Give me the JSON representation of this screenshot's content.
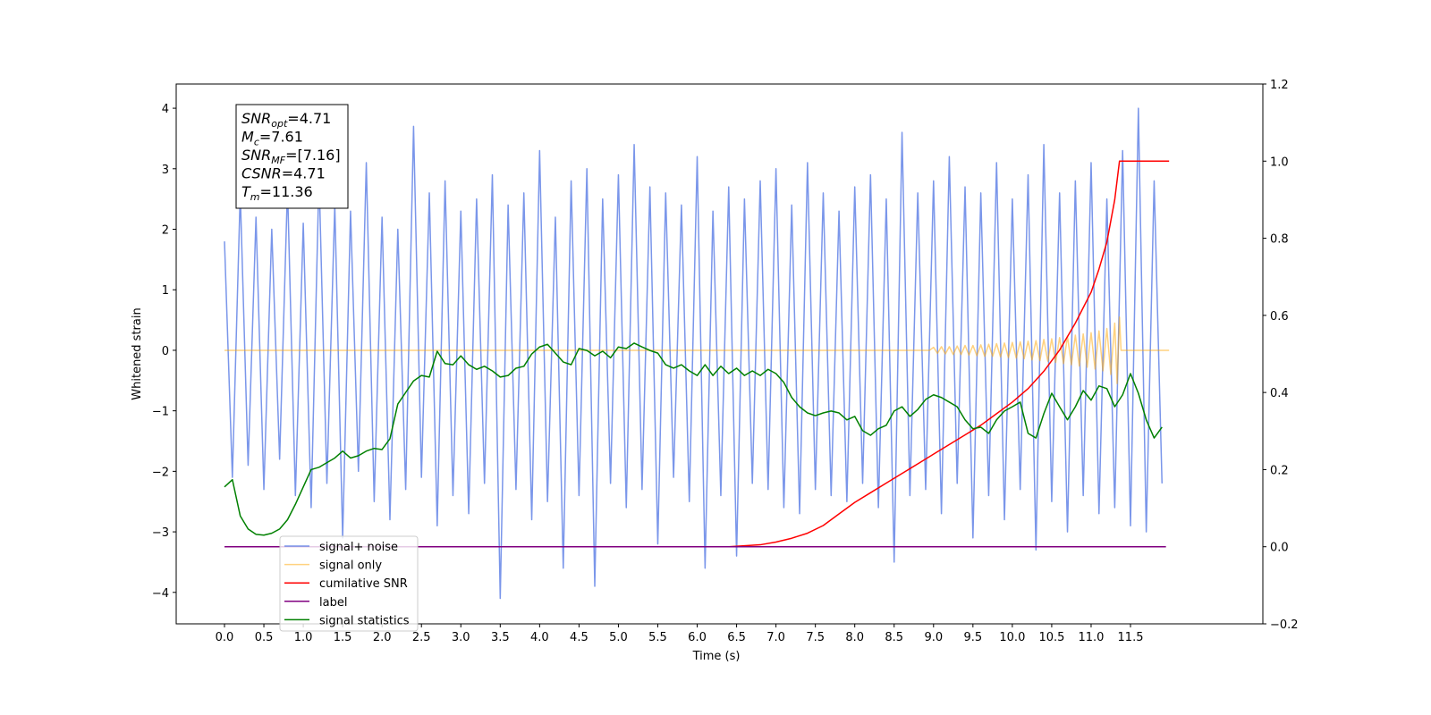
{
  "chart_data": {
    "type": "line",
    "x_label": "Time (s)",
    "y_label": "Whitened strain",
    "xlim": [
      -0.613,
      13.18
    ],
    "ylim": [
      -4.52,
      4.4
    ],
    "y2lim": [
      -0.2,
      1.2
    ],
    "xticks": [
      {
        "value": 0,
        "label": "0.0"
      },
      0.5,
      {
        "value": 1,
        "label": "1.0"
      },
      1.5,
      {
        "value": 2,
        "label": "2.0"
      },
      2.5,
      {
        "value": 3,
        "label": "3.0"
      },
      3.5,
      {
        "value": 4,
        "label": "4.0"
      },
      4.5,
      {
        "value": 5,
        "label": "5.0"
      },
      5.5,
      {
        "value": 6,
        "label": "6.0"
      },
      6.5,
      {
        "value": 7,
        "label": "7.0"
      },
      7.5,
      {
        "value": 8,
        "label": "8.0"
      },
      8.5,
      {
        "value": 9,
        "label": "9.0"
      },
      9.5,
      {
        "value": 10,
        "label": "10.0"
      },
      10.5,
      {
        "value": 11,
        "label": "11.0"
      },
      11.5
    ],
    "yticks": [
      {
        "value": -4,
        "label": "−4"
      },
      {
        "value": -3,
        "label": "−3"
      },
      {
        "value": -2,
        "label": "−2"
      },
      {
        "value": -1,
        "label": "−1"
      },
      0,
      1,
      2,
      3,
      4
    ],
    "y2ticks": [
      {
        "value": -0.2,
        "label": "−0.2"
      },
      {
        "value": 0,
        "label": "0.0"
      },
      0.2,
      0.4,
      0.6,
      0.8,
      {
        "value": 1,
        "label": "1.0"
      },
      1.2
    ],
    "x": [
      0,
      0.1,
      0.2,
      0.3,
      0.4,
      0.5,
      0.6,
      0.7,
      0.8,
      0.9,
      1,
      1.1,
      1.2,
      1.3,
      1.4,
      1.5,
      1.6,
      1.7,
      1.8,
      1.9,
      2,
      2.1,
      2.2,
      2.3,
      2.4,
      2.5,
      2.6,
      2.7,
      2.8,
      2.9,
      3,
      3.1,
      3.2,
      3.3,
      3.4,
      3.5,
      3.6,
      3.7,
      3.8,
      3.9,
      4,
      4.1,
      4.2,
      4.3,
      4.4,
      4.5,
      4.6,
      4.7,
      4.8,
      4.9,
      5,
      5.1,
      5.2,
      5.3,
      5.4,
      5.5,
      5.6,
      5.7,
      5.8,
      5.9,
      6,
      6.1,
      6.2,
      6.3,
      6.4,
      6.5,
      6.6,
      6.7,
      6.8,
      6.9,
      7,
      7.1,
      7.2,
      7.3,
      7.4,
      7.5,
      7.6,
      7.7,
      7.8,
      7.9,
      8,
      8.1,
      8.2,
      8.3,
      8.4,
      8.5,
      8.6,
      8.7,
      8.8,
      8.9,
      9,
      9.1,
      9.2,
      9.3,
      9.4,
      9.5,
      9.6,
      9.7,
      9.8,
      9.9,
      10,
      10.1,
      10.2,
      10.3,
      10.4,
      10.5,
      10.6,
      10.7,
      10.8,
      10.9,
      11,
      11.1,
      11.2,
      11.3,
      11.4,
      11.5,
      11.6,
      11.7,
      11.8,
      11.9
    ],
    "series": [
      {
        "name": "signal+ noise",
        "color": "#4169e1",
        "opacity": 0.7,
        "values": [
          1.8,
          -2.1,
          2.6,
          -1.9,
          2.2,
          -2.3,
          2.0,
          -1.8,
          2.7,
          -2.4,
          2.1,
          -2.6,
          2.9,
          -2.2,
          2.4,
          -3.1,
          2.3,
          -2.0,
          3.1,
          -2.5,
          2.2,
          -2.8,
          2.0,
          -2.3,
          3.7,
          -2.1,
          2.6,
          -2.9,
          2.8,
          -2.4,
          2.3,
          -2.7,
          2.5,
          -2.2,
          2.9,
          -4.1,
          2.4,
          -2.3,
          2.6,
          -2.8,
          3.3,
          -2.5,
          2.2,
          -3.6,
          2.8,
          -2.4,
          3.0,
          -3.9,
          2.5,
          -2.2,
          2.9,
          -2.6,
          3.4,
          -2.3,
          2.7,
          -3.2,
          2.6,
          -2.1,
          2.4,
          -2.5,
          3.2,
          -3.6,
          2.3,
          -2.4,
          2.7,
          -3.4,
          2.5,
          -2.2,
          2.8,
          -2.3,
          3.0,
          -2.6,
          2.4,
          -2.7,
          3.1,
          -2.3,
          2.6,
          -2.4,
          2.3,
          -2.5,
          2.7,
          -2.2,
          2.9,
          -2.6,
          2.5,
          -3.5,
          3.6,
          -2.4,
          2.6,
          -2.3,
          2.8,
          -2.7,
          3.2,
          -2.2,
          2.7,
          -3.1,
          2.6,
          -2.4,
          3.1,
          -2.8,
          2.5,
          -2.3,
          2.9,
          -3.3,
          3.4,
          -2.5,
          2.6,
          -3.0,
          2.8,
          -2.4,
          3.1,
          -2.7,
          2.5,
          -2.6,
          3.3,
          -2.9,
          4.0,
          -3.0,
          2.8,
          -2.2
        ]
      },
      {
        "name": "signal only",
        "color": "#ffa500",
        "opacity": 0.5,
        "x": [
          0,
          8.95,
          9.0,
          9.05,
          9.1,
          9.15,
          9.2,
          9.25,
          9.3,
          9.35,
          9.4,
          9.45,
          9.5,
          9.55,
          9.6,
          9.65,
          9.7,
          9.75,
          9.8,
          9.85,
          9.9,
          9.95,
          10.0,
          10.05,
          10.1,
          10.15,
          10.2,
          10.25,
          10.3,
          10.35,
          10.4,
          10.45,
          10.5,
          10.55,
          10.6,
          10.65,
          10.7,
          10.75,
          10.8,
          10.85,
          10.9,
          10.95,
          11.0,
          11.05,
          11.1,
          11.15,
          11.2,
          11.25,
          11.3,
          11.33,
          11.36,
          11.38,
          11.99
        ],
        "values": [
          0,
          0,
          0.05,
          -0.05,
          0.06,
          -0.06,
          0.06,
          -0.07,
          0.07,
          -0.07,
          0.08,
          -0.08,
          0.08,
          -0.09,
          0.09,
          -0.1,
          0.1,
          -0.1,
          0.11,
          -0.11,
          0.12,
          -0.12,
          0.13,
          -0.13,
          0.14,
          -0.14,
          0.15,
          -0.16,
          0.16,
          -0.17,
          0.18,
          -0.18,
          0.19,
          -0.2,
          0.21,
          -0.22,
          0.23,
          -0.24,
          0.25,
          -0.26,
          0.27,
          -0.28,
          0.29,
          -0.31,
          0.32,
          -0.34,
          0.36,
          -0.4,
          0.45,
          -0.55,
          0.55,
          0,
          0
        ]
      },
      {
        "name": "cumilative SNR",
        "color": "#ff0000",
        "axis": "y2",
        "x": [
          0,
          6.4,
          6.8,
          7.0,
          7.2,
          7.4,
          7.6,
          7.8,
          8.0,
          8.2,
          8.4,
          8.6,
          8.8,
          9.0,
          9.2,
          9.4,
          9.6,
          9.8,
          10.0,
          10.2,
          10.4,
          10.6,
          10.8,
          11.0,
          11.1,
          11.2,
          11.3,
          11.36,
          11.99
        ],
        "values": [
          0,
          0,
          0.005,
          0.012,
          0.022,
          0.035,
          0.055,
          0.085,
          0.115,
          0.14,
          0.165,
          0.19,
          0.215,
          0.24,
          0.265,
          0.29,
          0.315,
          0.345,
          0.375,
          0.41,
          0.455,
          0.51,
          0.58,
          0.66,
          0.72,
          0.79,
          0.9,
          1.0,
          1.0
        ]
      },
      {
        "name": "label",
        "color": "#800080",
        "axis": "y2",
        "x": [
          0,
          11.95
        ],
        "values": [
          0,
          0
        ]
      },
      {
        "name": "signal statistics",
        "color": "#008000",
        "axis": "y2",
        "values": [
          0.155,
          0.174,
          0.08,
          0.046,
          0.032,
          0.03,
          0.035,
          0.046,
          0.07,
          0.11,
          0.155,
          0.2,
          0.206,
          0.218,
          0.23,
          0.248,
          0.23,
          0.236,
          0.248,
          0.255,
          0.252,
          0.28,
          0.37,
          0.4,
          0.43,
          0.444,
          0.44,
          0.507,
          0.475,
          0.472,
          0.495,
          0.472,
          0.46,
          0.468,
          0.456,
          0.44,
          0.444,
          0.463,
          0.468,
          0.5,
          0.518,
          0.525,
          0.502,
          0.479,
          0.472,
          0.514,
          0.509,
          0.495,
          0.507,
          0.49,
          0.518,
          0.514,
          0.528,
          0.518,
          0.509,
          0.502,
          0.472,
          0.463,
          0.472,
          0.456,
          0.444,
          0.472,
          0.444,
          0.468,
          0.449,
          0.463,
          0.444,
          0.456,
          0.444,
          0.46,
          0.449,
          0.426,
          0.387,
          0.363,
          0.347,
          0.34,
          0.347,
          0.352,
          0.347,
          0.329,
          0.338,
          0.301,
          0.289,
          0.306,
          0.315,
          0.352,
          0.363,
          0.338,
          0.356,
          0.382,
          0.394,
          0.387,
          0.375,
          0.363,
          0.329,
          0.306,
          0.31,
          0.294,
          0.329,
          0.352,
          0.363,
          0.375,
          0.294,
          0.282,
          0.345,
          0.398,
          0.363,
          0.329,
          0.363,
          0.405,
          0.38,
          0.417,
          0.41,
          0.363,
          0.394,
          0.449,
          0.398,
          0.329,
          0.282,
          0.31
        ]
      }
    ],
    "annotation": [
      {
        "symbol": "SNR",
        "sub": "opt",
        "text": "=4.71"
      },
      {
        "symbol": "M",
        "sub": "c",
        "text": "=7.61"
      },
      {
        "symbol": "SNR",
        "sub": "MF",
        "text": "=[7.16]"
      },
      {
        "symbol": "CSNR",
        "text": "=4.71"
      },
      {
        "symbol": "T",
        "sub": "m",
        "text": "=11.36"
      }
    ],
    "legend": true
  }
}
